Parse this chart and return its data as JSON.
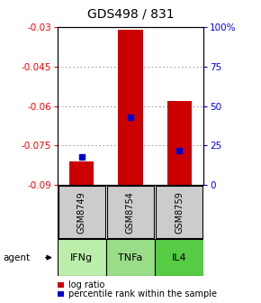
{
  "title": "GDS498 / 831",
  "ylim_left": [
    -0.09,
    -0.03
  ],
  "ylim_right": [
    0,
    100
  ],
  "yticks_left": [
    -0.09,
    -0.075,
    -0.06,
    -0.045,
    -0.03
  ],
  "yticks_right": [
    0,
    25,
    50,
    75,
    100
  ],
  "ytick_labels_right": [
    "0",
    "25",
    "50",
    "75",
    "100%"
  ],
  "samples": [
    "GSM8749",
    "GSM8754",
    "GSM8759"
  ],
  "agents": [
    "IFNg",
    "TNFa",
    "IL4"
  ],
  "bar_baseline": -0.09,
  "log_ratios": [
    -0.081,
    -0.031,
    -0.058
  ],
  "percentile_ranks": [
    18,
    43,
    22
  ],
  "bar_color": "#cc0000",
  "percentile_color": "#0000cc",
  "grid_color": "#888888",
  "agent_colors": [
    "#bbeeaa",
    "#99dd88",
    "#55cc44"
  ],
  "sample_bg": "#cccccc",
  "legend_log_ratio": "log ratio",
  "legend_percentile": "percentile rank within the sample",
  "agent_label": "agent"
}
